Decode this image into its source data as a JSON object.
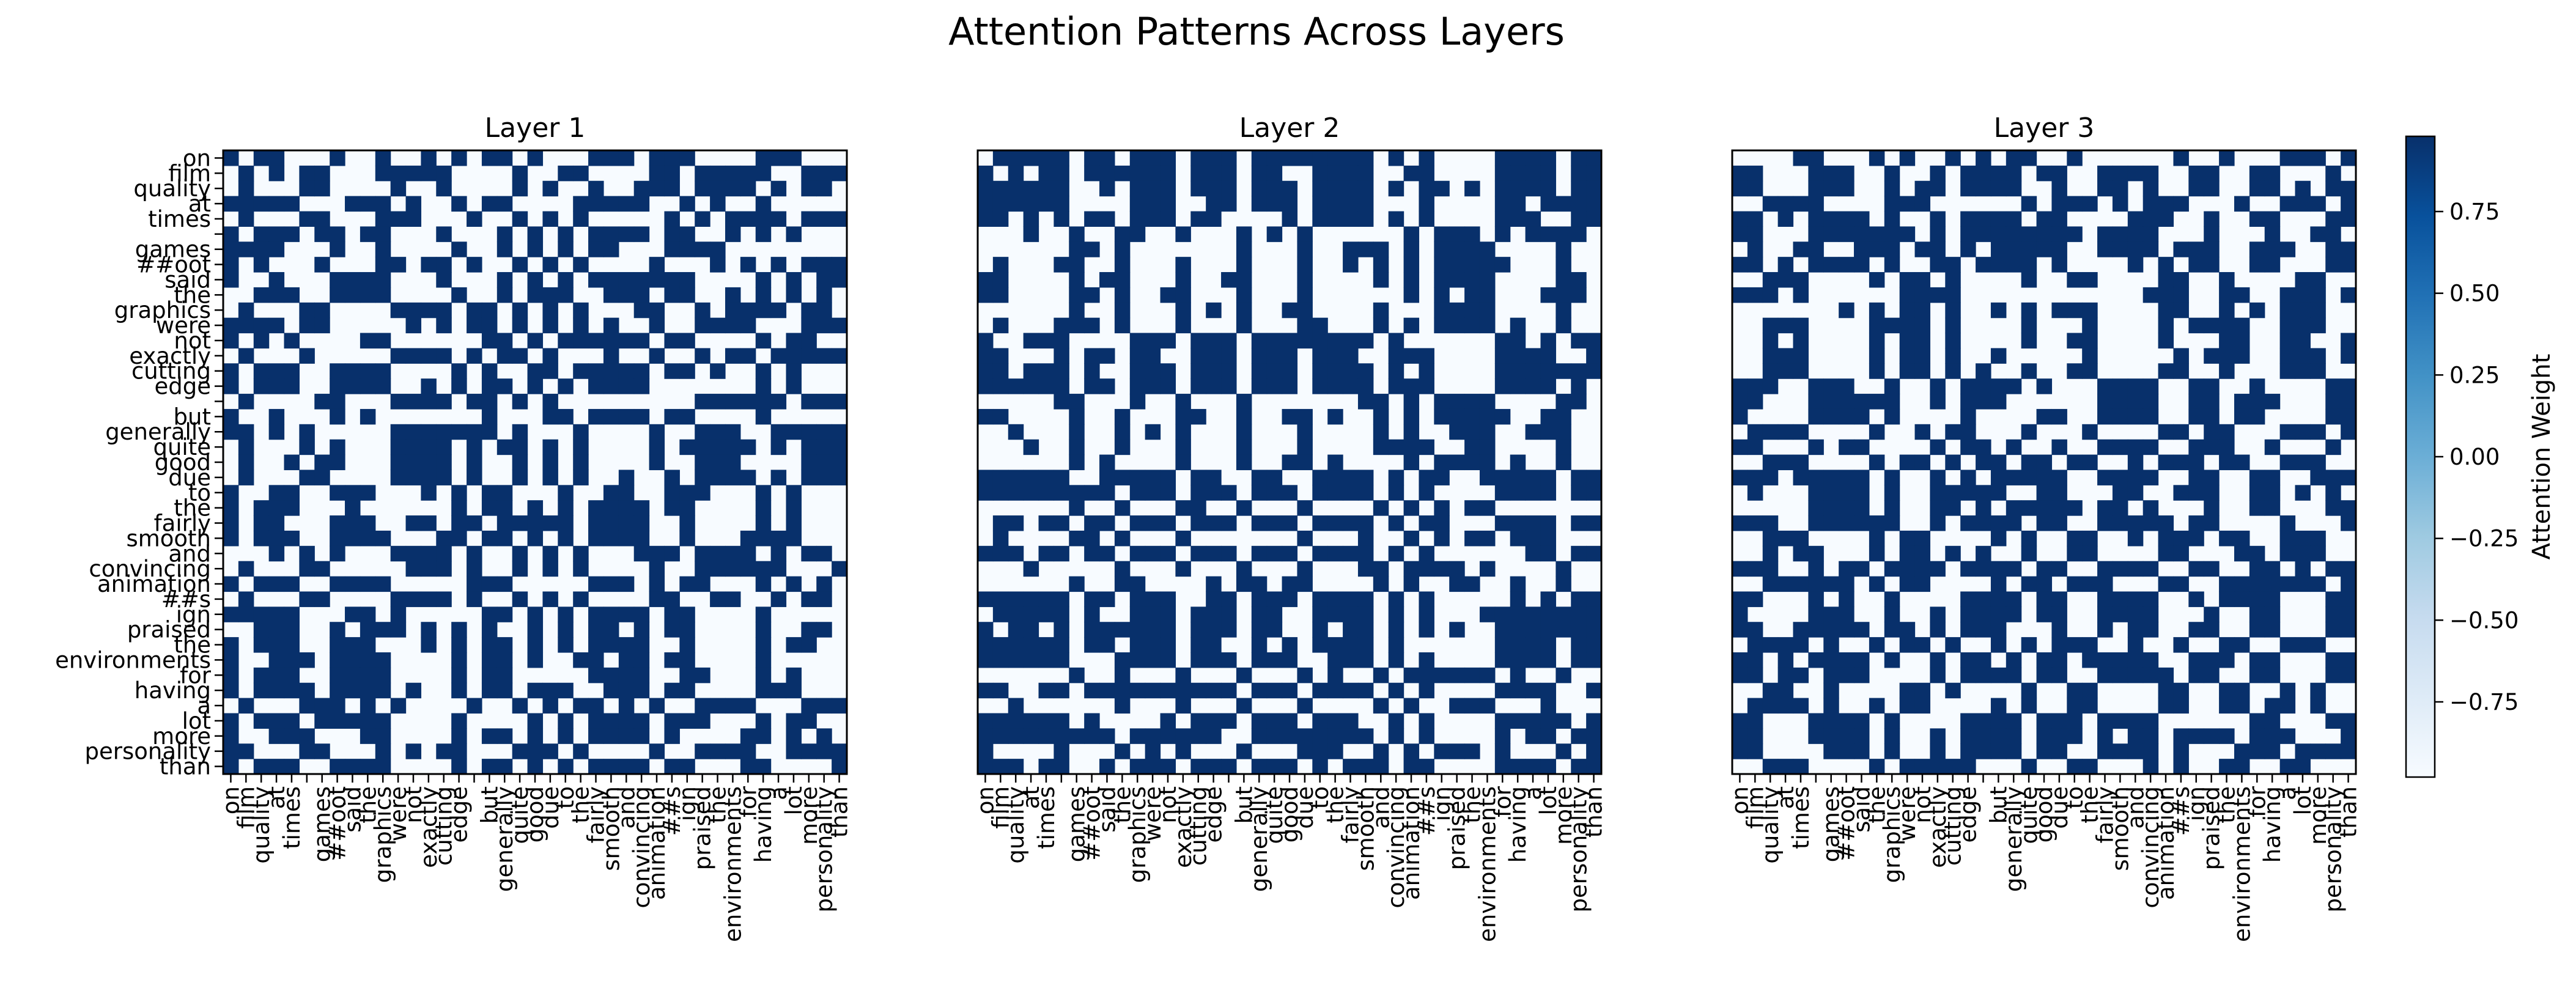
{
  "figure": {
    "suptitle": "Attention Patterns Across Layers"
  },
  "chart_data": {
    "type": "heatmap",
    "tokens": [
      "on",
      "film",
      "quality",
      "at",
      "times",
      "",
      "games",
      "##oot",
      "said",
      "the",
      "graphics",
      "were",
      "not",
      "exactly",
      "cutting",
      "edge",
      "",
      "but",
      "generally",
      "quite",
      "good",
      "due",
      "to",
      "the",
      "fairly",
      "smooth",
      "and",
      "convincing",
      "animation",
      "##s",
      "ign",
      "praised",
      "the",
      "environments",
      "for",
      "having",
      "a",
      "lot",
      "more",
      "personality",
      "than"
    ],
    "panels": [
      {
        "title": "Layer 1",
        "seed": 11
      },
      {
        "title": "Layer 2",
        "seed": 29
      },
      {
        "title": "Layer 3",
        "seed": 47
      }
    ],
    "note_values": "Cell values are near-binary: approximately 0.98 (dark) or -0.98 (light)",
    "value_high": 0.98,
    "value_low": -0.98,
    "colormap": {
      "name": "Blues",
      "low_color": "#f7fbff",
      "high_color": "#08306b"
    },
    "colorbar": {
      "label": "Attention Weight",
      "vmin": -0.98,
      "vmax": 0.98,
      "ticks": [
        0.75,
        0.5,
        0.25,
        0.0,
        -0.25,
        -0.5,
        -0.75
      ],
      "tick_labels": [
        "0.75",
        "0.50",
        "0.25",
        "0.00",
        "−0.25",
        "−0.50",
        "−0.75"
      ]
    }
  }
}
